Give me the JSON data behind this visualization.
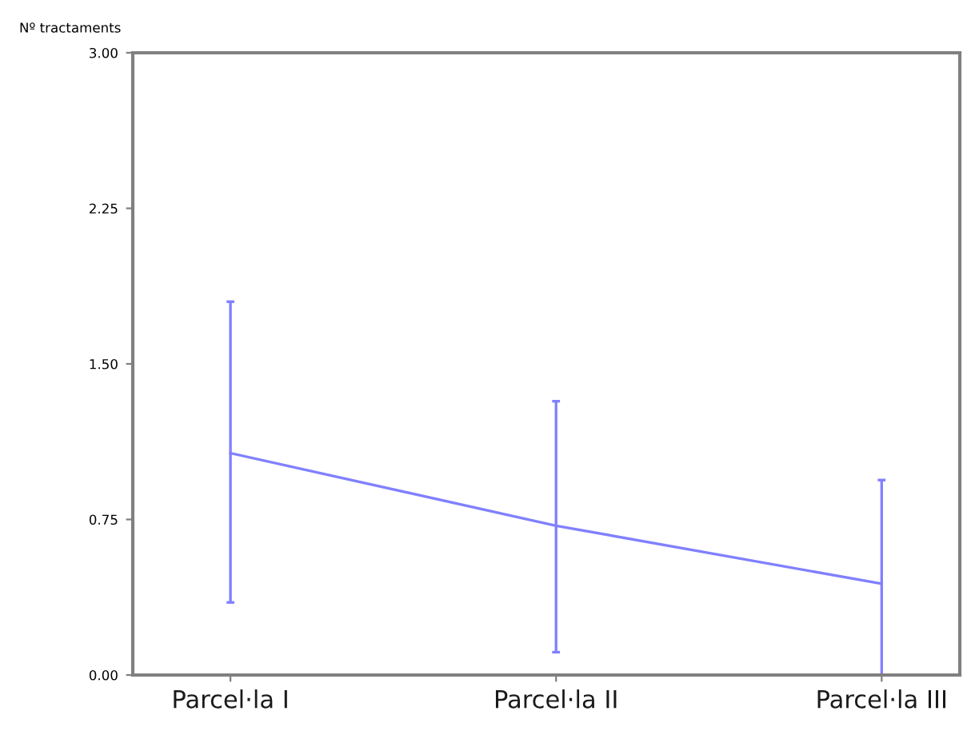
{
  "chart_data": {
    "type": "line",
    "ylabel": "Nº tractaments",
    "categories": [
      "Parcel·la I",
      "Parcel·la II",
      "Parcel·la III"
    ],
    "series": [
      {
        "color": "#8080ff",
        "values": [
          1.07,
          0.72,
          0.44
        ],
        "errors": [
          [
            0.35,
            1.8
          ],
          [
            0.11,
            1.32
          ],
          [
            0.0,
            0.94
          ]
        ]
      }
    ],
    "ylim": [
      0,
      3
    ],
    "yticks": [
      {
        "value": 0,
        "label": "0.00"
      },
      {
        "value": 0.75,
        "label": "0.75"
      },
      {
        "value": 1.5,
        "label": "1.50"
      },
      {
        "value": 2.25,
        "label": "2.25"
      },
      {
        "value": 3,
        "label": "3.00"
      }
    ],
    "grid": false,
    "legend": false,
    "marker": "none",
    "line_style": "solid"
  }
}
